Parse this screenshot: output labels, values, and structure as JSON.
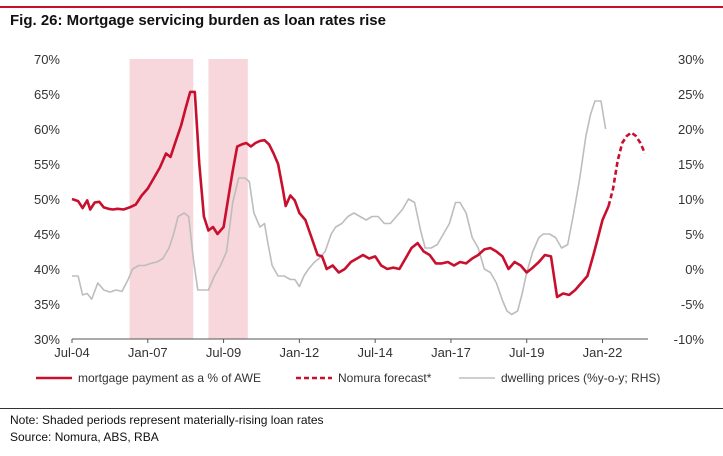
{
  "figure": {
    "title": "Fig. 26: Mortgage servicing burden as loan rates rise",
    "note": "Note: Shaded periods represent materially-rising loan rates",
    "source": "Source: Nomura, ABS, RBA"
  },
  "colors": {
    "accent": "#c8102e",
    "shade": "#f8d7dc",
    "grey": "#bdbdbd"
  },
  "chart_data": {
    "type": "line",
    "x_range": [
      2004.5,
      2023.5
    ],
    "x_ticks": [
      {
        "value": 2004.5,
        "label": "Jul-04"
      },
      {
        "value": 2007.0,
        "label": "Jan-07"
      },
      {
        "value": 2009.5,
        "label": "Jul-09"
      },
      {
        "value": 2012.0,
        "label": "Jan-12"
      },
      {
        "value": 2014.5,
        "label": "Jul-14"
      },
      {
        "value": 2017.0,
        "label": "Jan-17"
      },
      {
        "value": 2019.5,
        "label": "Jul-19"
      },
      {
        "value": 2022.0,
        "label": "Jan-22"
      }
    ],
    "y_left": {
      "min": 30,
      "max": 70,
      "ticks": [
        "70%",
        "65%",
        "60%",
        "55%",
        "50%",
        "45%",
        "40%",
        "35%",
        "30%"
      ],
      "tick_values": [
        70,
        65,
        60,
        55,
        50,
        45,
        40,
        35,
        30
      ]
    },
    "y_right": {
      "min": -10,
      "max": 30,
      "ticks": [
        "30%",
        "25%",
        "20%",
        "15%",
        "10%",
        "5%",
        "0%",
        "-5%",
        "-10%"
      ],
      "tick_values": [
        30,
        25,
        20,
        15,
        10,
        5,
        0,
        -5,
        -10
      ]
    },
    "shaded_periods": [
      [
        2006.4,
        2008.5
      ],
      [
        2009.0,
        2010.3
      ]
    ],
    "series": [
      {
        "name": "mortgage payment as a % of AWE",
        "axis": "left",
        "style": "solid",
        "points": [
          [
            2004.5,
            50.0
          ],
          [
            2004.7,
            49.7
          ],
          [
            2004.85,
            48.7
          ],
          [
            2005.0,
            49.8
          ],
          [
            2005.1,
            48.5
          ],
          [
            2005.25,
            49.5
          ],
          [
            2005.4,
            49.6
          ],
          [
            2005.55,
            48.8
          ],
          [
            2005.7,
            48.6
          ],
          [
            2005.85,
            48.5
          ],
          [
            2006.0,
            48.6
          ],
          [
            2006.2,
            48.5
          ],
          [
            2006.4,
            48.8
          ],
          [
            2006.6,
            49.2
          ],
          [
            2006.8,
            50.5
          ],
          [
            2007.0,
            51.5
          ],
          [
            2007.2,
            53.0
          ],
          [
            2007.4,
            54.5
          ],
          [
            2007.6,
            56.5
          ],
          [
            2007.75,
            56.0
          ],
          [
            2007.9,
            58.0
          ],
          [
            2008.1,
            60.5
          ],
          [
            2008.25,
            63.0
          ],
          [
            2008.4,
            65.3
          ],
          [
            2008.55,
            65.3
          ],
          [
            2008.7,
            55.0
          ],
          [
            2008.85,
            47.5
          ],
          [
            2009.0,
            45.5
          ],
          [
            2009.15,
            46.0
          ],
          [
            2009.3,
            45.0
          ],
          [
            2009.5,
            46.0
          ],
          [
            2009.65,
            50.0
          ],
          [
            2009.8,
            54.0
          ],
          [
            2009.95,
            57.5
          ],
          [
            2010.1,
            57.8
          ],
          [
            2010.25,
            58.0
          ],
          [
            2010.4,
            57.5
          ],
          [
            2010.55,
            58.0
          ],
          [
            2010.7,
            58.3
          ],
          [
            2010.85,
            58.4
          ],
          [
            2011.0,
            57.8
          ],
          [
            2011.15,
            56.5
          ],
          [
            2011.3,
            55.0
          ],
          [
            2011.45,
            51.5
          ],
          [
            2011.55,
            49.0
          ],
          [
            2011.7,
            50.5
          ],
          [
            2011.85,
            49.8
          ],
          [
            2012.0,
            48.0
          ],
          [
            2012.2,
            47.0
          ],
          [
            2012.4,
            44.5
          ],
          [
            2012.6,
            42.0
          ],
          [
            2012.75,
            41.8
          ],
          [
            2012.9,
            40.0
          ],
          [
            2013.1,
            40.5
          ],
          [
            2013.3,
            39.5
          ],
          [
            2013.5,
            40.0
          ],
          [
            2013.7,
            41.0
          ],
          [
            2013.9,
            41.5
          ],
          [
            2014.1,
            42.0
          ],
          [
            2014.3,
            41.5
          ],
          [
            2014.5,
            41.8
          ],
          [
            2014.7,
            40.5
          ],
          [
            2014.9,
            40.0
          ],
          [
            2015.1,
            40.2
          ],
          [
            2015.3,
            40.0
          ],
          [
            2015.5,
            41.5
          ],
          [
            2015.7,
            43.0
          ],
          [
            2015.9,
            43.7
          ],
          [
            2016.1,
            42.5
          ],
          [
            2016.3,
            42.0
          ],
          [
            2016.5,
            40.8
          ],
          [
            2016.7,
            40.8
          ],
          [
            2016.9,
            41.0
          ],
          [
            2017.1,
            40.5
          ],
          [
            2017.3,
            41.0
          ],
          [
            2017.5,
            40.8
          ],
          [
            2017.7,
            41.5
          ],
          [
            2017.9,
            42.0
          ],
          [
            2018.1,
            42.8
          ],
          [
            2018.3,
            43.0
          ],
          [
            2018.5,
            42.5
          ],
          [
            2018.7,
            41.8
          ],
          [
            2018.9,
            40.0
          ],
          [
            2019.1,
            41.0
          ],
          [
            2019.3,
            40.5
          ],
          [
            2019.5,
            39.5
          ],
          [
            2019.7,
            40.2
          ],
          [
            2019.9,
            41.0
          ],
          [
            2020.1,
            42.0
          ],
          [
            2020.3,
            41.8
          ],
          [
            2020.5,
            36.0
          ],
          [
            2020.7,
            36.5
          ],
          [
            2020.9,
            36.3
          ],
          [
            2021.1,
            37.0
          ],
          [
            2021.3,
            38.0
          ],
          [
            2021.5,
            39.0
          ],
          [
            2021.7,
            42.0
          ],
          [
            2021.85,
            44.5
          ],
          [
            2022.0,
            47.0
          ],
          [
            2022.2,
            49.0
          ]
        ]
      },
      {
        "name": "Nomura forecast*",
        "axis": "left",
        "style": "dashed",
        "points": [
          [
            2022.2,
            49.0
          ],
          [
            2022.35,
            51.5
          ],
          [
            2022.5,
            55.5
          ],
          [
            2022.65,
            58.0
          ],
          [
            2022.8,
            59.0
          ],
          [
            2022.95,
            59.5
          ],
          [
            2023.1,
            59.0
          ],
          [
            2023.25,
            58.0
          ],
          [
            2023.4,
            56.5
          ]
        ]
      },
      {
        "name": "dwelling prices (%y-o-y; RHS)",
        "axis": "right",
        "style": "solid",
        "points": [
          [
            2004.5,
            -1.0
          ],
          [
            2004.7,
            -1.0
          ],
          [
            2004.85,
            -3.7
          ],
          [
            2005.0,
            -3.5
          ],
          [
            2005.15,
            -4.3
          ],
          [
            2005.35,
            -2.0
          ],
          [
            2005.55,
            -3.0
          ],
          [
            2005.75,
            -3.3
          ],
          [
            2005.95,
            -3.0
          ],
          [
            2006.15,
            -3.2
          ],
          [
            2006.35,
            -1.5
          ],
          [
            2006.5,
            0.0
          ],
          [
            2006.7,
            0.5
          ],
          [
            2006.9,
            0.5
          ],
          [
            2007.1,
            0.8
          ],
          [
            2007.3,
            1.0
          ],
          [
            2007.5,
            1.5
          ],
          [
            2007.7,
            3.0
          ],
          [
            2007.85,
            5.0
          ],
          [
            2008.0,
            7.5
          ],
          [
            2008.2,
            8.0
          ],
          [
            2008.35,
            7.5
          ],
          [
            2008.5,
            1.5
          ],
          [
            2008.65,
            -3.0
          ],
          [
            2008.8,
            -3.0
          ],
          [
            2009.0,
            -3.0
          ],
          [
            2009.2,
            -1.0
          ],
          [
            2009.4,
            0.5
          ],
          [
            2009.6,
            2.5
          ],
          [
            2009.8,
            9.5
          ],
          [
            2010.0,
            13.0
          ],
          [
            2010.2,
            13.0
          ],
          [
            2010.35,
            12.5
          ],
          [
            2010.5,
            8.0
          ],
          [
            2010.7,
            6.0
          ],
          [
            2010.85,
            6.5
          ],
          [
            2010.95,
            4.0
          ],
          [
            2011.1,
            0.5
          ],
          [
            2011.3,
            -1.0
          ],
          [
            2011.5,
            -1.0
          ],
          [
            2011.7,
            -1.5
          ],
          [
            2011.85,
            -1.5
          ],
          [
            2012.0,
            -2.5
          ],
          [
            2012.15,
            -1.0
          ],
          [
            2012.3,
            0.0
          ],
          [
            2012.5,
            1.0
          ],
          [
            2012.65,
            1.5
          ],
          [
            2012.85,
            2.5
          ],
          [
            2013.05,
            5.0
          ],
          [
            2013.2,
            6.0
          ],
          [
            2013.4,
            6.5
          ],
          [
            2013.6,
            7.5
          ],
          [
            2013.8,
            8.0
          ],
          [
            2014.0,
            7.5
          ],
          [
            2014.2,
            7.0
          ],
          [
            2014.4,
            7.5
          ],
          [
            2014.6,
            7.5
          ],
          [
            2014.8,
            6.5
          ],
          [
            2015.0,
            6.5
          ],
          [
            2015.2,
            7.5
          ],
          [
            2015.4,
            8.5
          ],
          [
            2015.6,
            10.0
          ],
          [
            2015.8,
            9.5
          ],
          [
            2016.0,
            5.5
          ],
          [
            2016.15,
            3.0
          ],
          [
            2016.35,
            3.0
          ],
          [
            2016.55,
            3.5
          ],
          [
            2016.75,
            5.0
          ],
          [
            2016.95,
            6.5
          ],
          [
            2017.15,
            9.5
          ],
          [
            2017.3,
            9.5
          ],
          [
            2017.5,
            8.0
          ],
          [
            2017.7,
            4.5
          ],
          [
            2017.9,
            3.0
          ],
          [
            2018.1,
            0.0
          ],
          [
            2018.3,
            -0.5
          ],
          [
            2018.5,
            -2.0
          ],
          [
            2018.7,
            -4.5
          ],
          [
            2018.85,
            -6.0
          ],
          [
            2019.0,
            -6.5
          ],
          [
            2019.2,
            -6.0
          ],
          [
            2019.35,
            -3.5
          ],
          [
            2019.5,
            -0.5
          ],
          [
            2019.7,
            2.5
          ],
          [
            2019.9,
            4.5
          ],
          [
            2020.05,
            5.0
          ],
          [
            2020.25,
            5.0
          ],
          [
            2020.45,
            4.5
          ],
          [
            2020.65,
            3.0
          ],
          [
            2020.85,
            3.5
          ],
          [
            2021.05,
            8.0
          ],
          [
            2021.25,
            13.0
          ],
          [
            2021.45,
            19.0
          ],
          [
            2021.6,
            22.0
          ],
          [
            2021.75,
            24.0
          ],
          [
            2021.95,
            24.0
          ],
          [
            2022.1,
            20.0
          ]
        ]
      }
    ],
    "legend": [
      {
        "label": "mortgage payment as a % of AWE",
        "style": "solid-red"
      },
      {
        "label": "Nomura forecast*",
        "style": "dashed-red"
      },
      {
        "label": "dwelling prices (%y-o-y; RHS)",
        "style": "solid-grey"
      }
    ]
  }
}
